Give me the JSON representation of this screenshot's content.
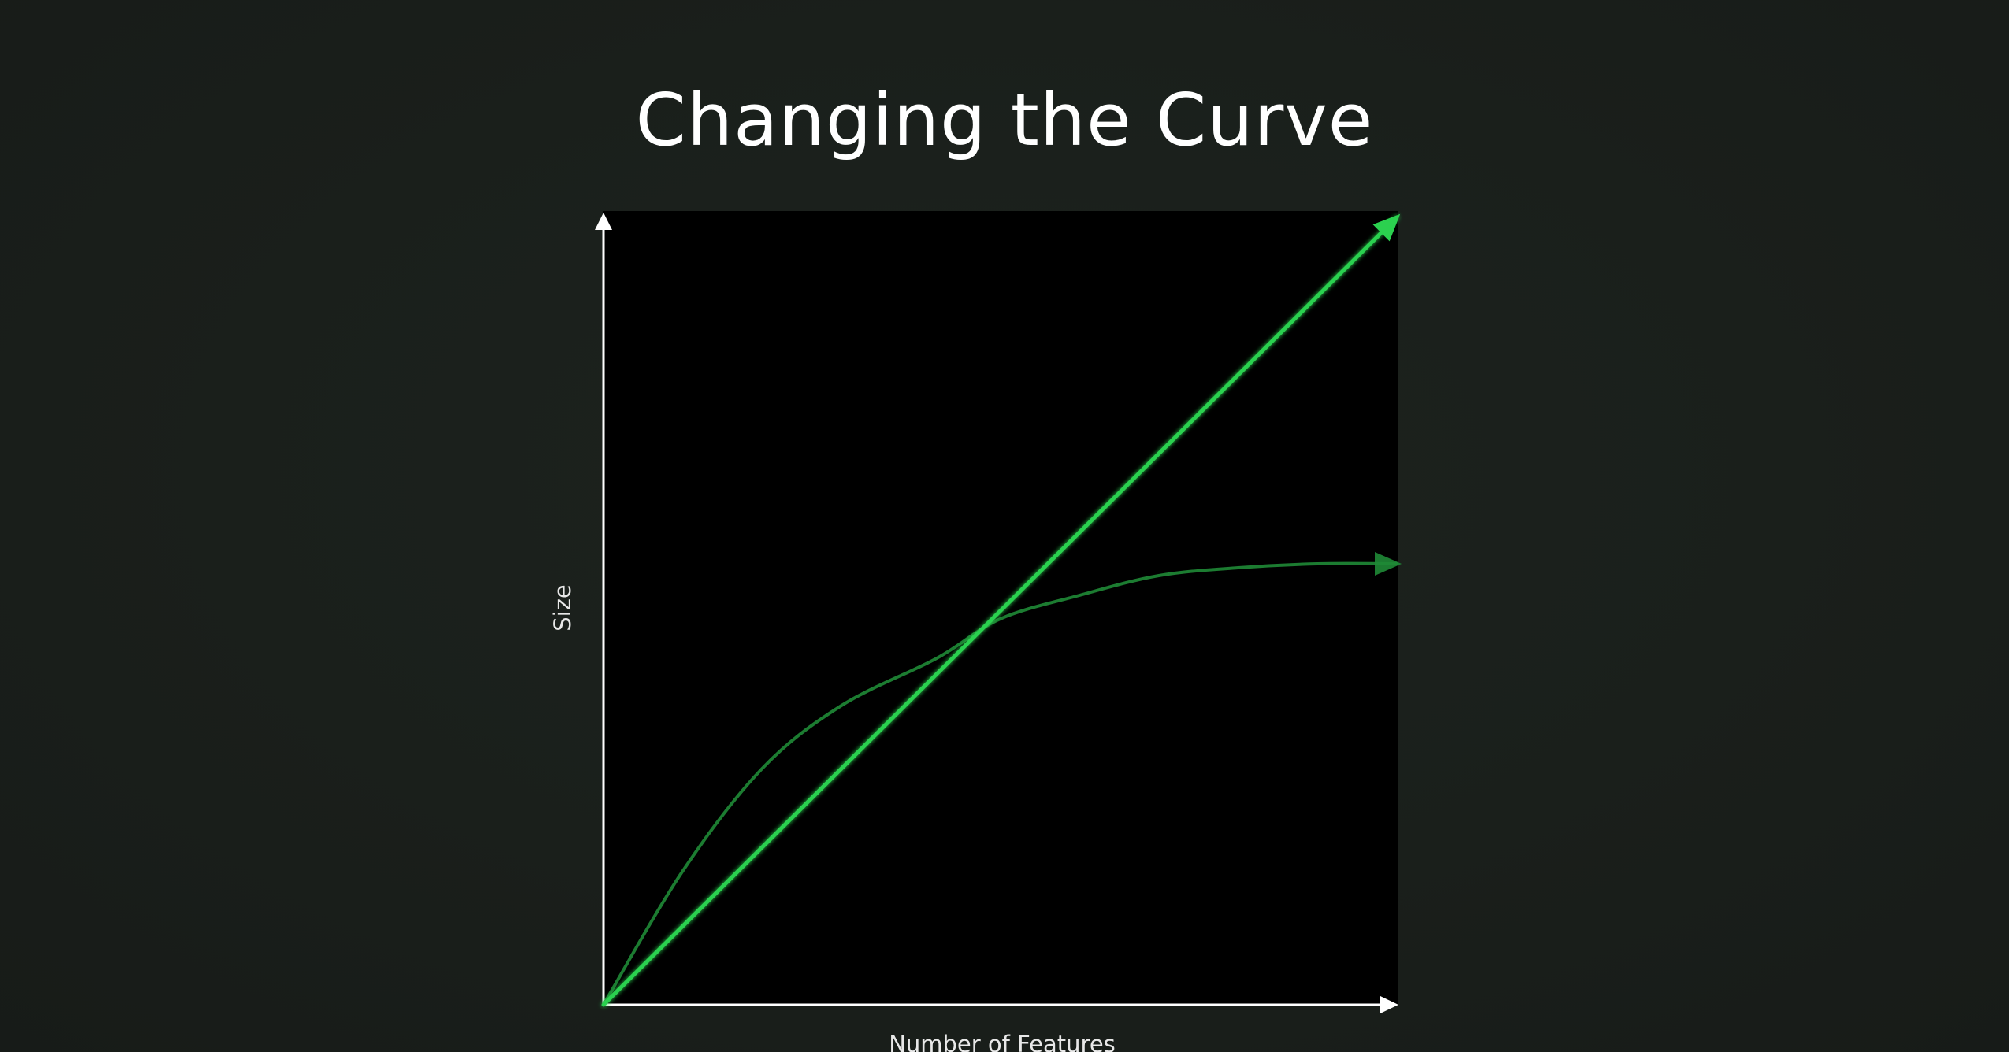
{
  "slide": {
    "title": "Changing the Curve"
  },
  "colors": {
    "background": "#1a1f1b",
    "plot_background": "#000000",
    "axis": "#ffffff",
    "linear_series": "#2bd14f",
    "curved_series": "#1f8a36"
  },
  "chart_data": {
    "type": "line",
    "title": "Changing the Curve",
    "xlabel": "Number of Features",
    "ylabel": "Size",
    "xlim": [
      0,
      1
    ],
    "ylim": [
      0,
      1
    ],
    "grid": false,
    "legend": "none",
    "series": [
      {
        "key": "linear",
        "x": [
          0,
          1
        ],
        "y": [
          0,
          1
        ]
      },
      {
        "key": "curved",
        "x": [
          0,
          0.1,
          0.2,
          0.3,
          0.42,
          0.5,
          0.6,
          0.7,
          0.8,
          0.9,
          1.0
        ],
        "y": [
          0,
          0.17,
          0.3,
          0.38,
          0.44,
          0.49,
          0.52,
          0.545,
          0.555,
          0.56,
          0.56
        ]
      }
    ]
  }
}
